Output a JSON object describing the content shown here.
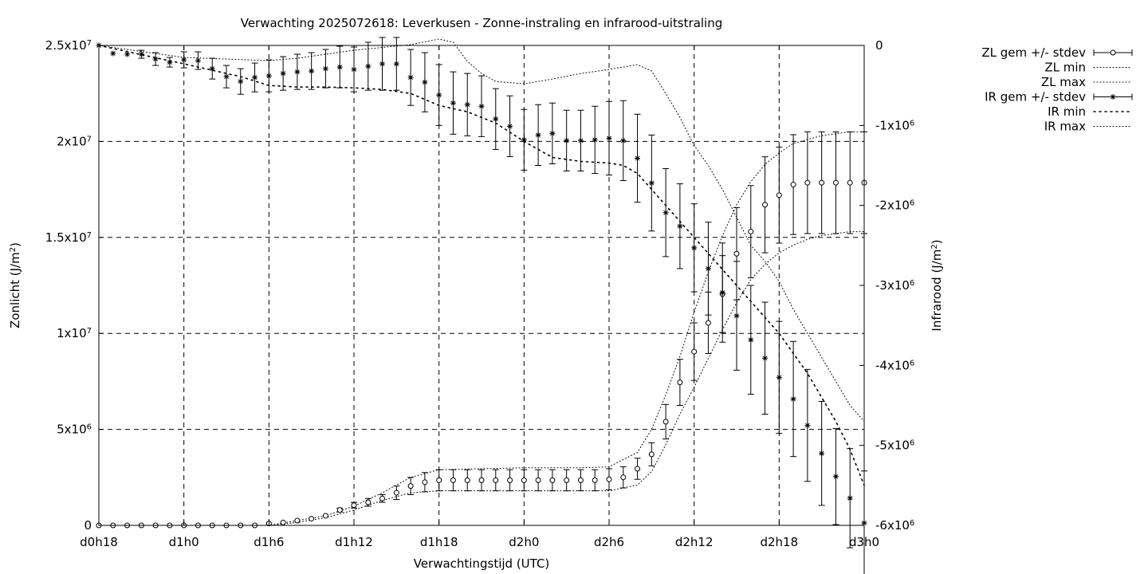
{
  "chart_data": {
    "type": "line",
    "title": "Verwachting 2025072618: Leverkusen - Zonne-instraling en infrarood-uitstraling",
    "xlabel": "Verwachtingstijd (UTC)",
    "ylabel": {
      "prefix": "Zonlicht (J/m",
      "sup": "2",
      "suffix": ")"
    },
    "y2label": {
      "prefix": "Infrarood (J/m",
      "sup": "2",
      "suffix": ")"
    },
    "x_unit_hours": true,
    "xlim": [
      18,
      72
    ],
    "ylim": [
      0,
      25000000
    ],
    "y2lim": [
      -6000000,
      0
    ],
    "grid": true,
    "legend_position": "outside-top-right",
    "x_ticks": [
      {
        "value": 18,
        "label": "d0h18"
      },
      {
        "value": 24,
        "label": "d1h0"
      },
      {
        "value": 30,
        "label": "d1h6"
      },
      {
        "value": 36,
        "label": "d1h12"
      },
      {
        "value": 42,
        "label": "d1h18"
      },
      {
        "value": 48,
        "label": "d2h0"
      },
      {
        "value": 54,
        "label": "d2h6"
      },
      {
        "value": 60,
        "label": "d2h12"
      },
      {
        "value": 66,
        "label": "d2h18"
      },
      {
        "value": 72,
        "label": "d3h0"
      }
    ],
    "y_ticks": [
      {
        "value": 0,
        "base": "0",
        "exp": ""
      },
      {
        "value": 5000000,
        "base": "5x10",
        "exp": "6"
      },
      {
        "value": 10000000,
        "base": "1x10",
        "exp": "7"
      },
      {
        "value": 15000000,
        "base": "1.5x10",
        "exp": "7"
      },
      {
        "value": 20000000,
        "base": "2x10",
        "exp": "7"
      },
      {
        "value": 25000000,
        "base": "2.5x10",
        "exp": "7"
      }
    ],
    "y2_ticks": [
      {
        "value": 0,
        "base": "0",
        "exp": ""
      },
      {
        "value": -1000000,
        "base": "-1x10",
        "exp": "6"
      },
      {
        "value": -2000000,
        "base": "-2x10",
        "exp": "6"
      },
      {
        "value": -3000000,
        "base": "-3x10",
        "exp": "6"
      },
      {
        "value": -4000000,
        "base": "-4x10",
        "exp": "6"
      },
      {
        "value": -5000000,
        "base": "-5x10",
        "exp": "6"
      },
      {
        "value": -6000000,
        "base": "-6x10",
        "exp": "6"
      }
    ],
    "legend": [
      {
        "label": "ZL gem +/- stdev",
        "style": "errorbar-circle"
      },
      {
        "label": "ZL min",
        "style": "fine-dotted"
      },
      {
        "label": "ZL max",
        "style": "fine-dotted"
      },
      {
        "label": "IR gem +/- stdev",
        "style": "errorbar-star"
      },
      {
        "label": "IR min",
        "style": "coarse-dotted"
      },
      {
        "label": "IR max",
        "style": "fine-dotted"
      }
    ],
    "zl_gem": {
      "axis": "y1",
      "x": [
        18,
        19,
        20,
        21,
        22,
        23,
        24,
        25,
        26,
        27,
        28,
        29,
        30,
        31,
        32,
        33,
        34,
        35,
        36,
        37,
        38,
        39,
        40,
        41,
        42,
        43,
        44,
        45,
        46,
        47,
        48,
        49,
        50,
        51,
        52,
        53,
        54,
        55,
        56,
        57,
        58,
        59,
        60,
        61,
        62,
        63,
        64,
        65,
        66,
        67,
        68,
        69,
        70,
        71,
        72
      ],
      "y": [
        0,
        0,
        0,
        0,
        0,
        0,
        0,
        0,
        0,
        0,
        0,
        0,
        100000,
        150000,
        250000,
        350000,
        500000,
        800000,
        1050000,
        1200000,
        1400000,
        1700000,
        2050000,
        2250000,
        2350000,
        2350000,
        2350000,
        2350000,
        2350000,
        2350000,
        2350000,
        2350000,
        2350000,
        2350000,
        2350000,
        2350000,
        2400000,
        2500000,
        2950000,
        3700000,
        5400000,
        7450000,
        9050000,
        10550000,
        12050000,
        14150000,
        15300000,
        16700000,
        17200000,
        17750000,
        17850000,
        17850000,
        17850000,
        17850000,
        17850000
      ],
      "err": [
        0,
        0,
        0,
        0,
        0,
        0,
        0,
        0,
        0,
        0,
        0,
        0,
        0,
        0,
        0,
        0,
        0,
        100000,
        150000,
        200000,
        200000,
        350000,
        450000,
        500000,
        550000,
        550000,
        550000,
        550000,
        550000,
        550000,
        550000,
        550000,
        550000,
        550000,
        550000,
        550000,
        550000,
        550000,
        550000,
        600000,
        900000,
        1200000,
        1500000,
        1600000,
        2000000,
        2400000,
        2400000,
        2500000,
        2500000,
        2600000,
        2650000,
        2650000,
        2650000,
        2650000,
        2650000
      ]
    },
    "zl_min": {
      "axis": "y1",
      "x": [
        18,
        24,
        28,
        30,
        32,
        34,
        36,
        38,
        40,
        42,
        48,
        52,
        54,
        56,
        57,
        58,
        59,
        60,
        61,
        62,
        63,
        64,
        65,
        66,
        67,
        68,
        69,
        70,
        71,
        72
      ],
      "y": [
        0,
        0,
        0,
        0,
        150000,
        400000,
        800000,
        1300000,
        1700000,
        1800000,
        1800000,
        1800000,
        1800000,
        2100000,
        2800000,
        4200000,
        5800000,
        7200000,
        8700000,
        10200000,
        11600000,
        12800000,
        13600000,
        14200000,
        14600000,
        14900000,
        15100000,
        15200000,
        15300000,
        15300000
      ]
    },
    "zl_max": {
      "axis": "y1",
      "x": [
        18,
        24,
        28,
        30,
        32,
        34,
        36,
        38,
        40,
        42,
        48,
        52,
        54,
        56,
        57,
        58,
        59,
        60,
        61,
        62,
        63,
        64,
        65,
        66,
        67,
        68,
        69,
        70,
        71,
        72
      ],
      "y": [
        0,
        0,
        0,
        0,
        250000,
        500000,
        1000000,
        1700000,
        2500000,
        2900000,
        3000000,
        3000000,
        3050000,
        3800000,
        5000000,
        6800000,
        8800000,
        11100000,
        13200000,
        15100000,
        16700000,
        17900000,
        18800000,
        19400000,
        19900000,
        20100000,
        20300000,
        20400000,
        20500000,
        20500000
      ]
    },
    "ir_gem": {
      "axis": "y2",
      "x": [
        18,
        19,
        20,
        21,
        22,
        23,
        24,
        25,
        26,
        27,
        28,
        29,
        30,
        31,
        32,
        33,
        34,
        35,
        36,
        37,
        38,
        39,
        40,
        41,
        42,
        43,
        44,
        45,
        46,
        47,
        48,
        49,
        50,
        51,
        52,
        53,
        54,
        55,
        56,
        57,
        58,
        59,
        60,
        61,
        62,
        63,
        64,
        65,
        66,
        67,
        68,
        69,
        70,
        71,
        72
      ],
      "y": [
        0,
        -100000,
        -110000,
        -110000,
        -170000,
        -210000,
        -180000,
        -190000,
        -290000,
        -390000,
        -450000,
        -400000,
        -380000,
        -350000,
        -330000,
        -320000,
        -290000,
        -270000,
        -300000,
        -260000,
        -230000,
        -230000,
        -400000,
        -460000,
        -620000,
        -720000,
        -740000,
        -760000,
        -920000,
        -1010000,
        -1180000,
        -1120000,
        -1100000,
        -1190000,
        -1190000,
        -1180000,
        -1160000,
        -1190000,
        -1410000,
        -1720000,
        -2090000,
        -2260000,
        -2530000,
        -2790000,
        -3090000,
        -3380000,
        -3680000,
        -3910000,
        -4150000,
        -4420000,
        -4750000,
        -5100000,
        -5390000,
        -5660000,
        -5970000
      ],
      "err": [
        0,
        0,
        0,
        50000,
        80000,
        60000,
        100000,
        110000,
        130000,
        140000,
        160000,
        180000,
        200000,
        210000,
        220000,
        230000,
        240000,
        260000,
        280000,
        300000,
        330000,
        330000,
        350000,
        370000,
        380000,
        390000,
        390000,
        380000,
        380000,
        380000,
        380000,
        380000,
        380000,
        380000,
        380000,
        420000,
        460000,
        500000,
        550000,
        600000,
        550000,
        530000,
        550000,
        580000,
        620000,
        680000,
        680000,
        700000,
        700000,
        720000,
        700000,
        650000,
        600000,
        620000,
        650000
      ]
    },
    "ir_min": {
      "axis": "y2",
      "x": [
        18,
        24,
        28,
        30,
        32,
        34,
        36,
        38,
        40,
        42,
        44,
        46,
        48,
        50,
        52,
        54,
        55,
        56,
        57,
        58,
        59,
        60,
        61,
        62,
        63,
        64,
        65,
        66,
        67,
        68,
        69,
        70,
        71,
        72
      ],
      "y": [
        0,
        -230000,
        -390000,
        -500000,
        -520000,
        -520000,
        -530000,
        -550000,
        -600000,
        -750000,
        -830000,
        -970000,
        -1200000,
        -1400000,
        -1450000,
        -1470000,
        -1500000,
        -1600000,
        -1800000,
        -2000000,
        -2200000,
        -2400000,
        -2600000,
        -2800000,
        -3000000,
        -3200000,
        -3400000,
        -3600000,
        -3850000,
        -4100000,
        -4400000,
        -4700000,
        -5050000,
        -5500000
      ]
    },
    "ir_max": {
      "axis": "y2",
      "x": [
        18,
        24,
        30,
        32,
        36,
        40,
        42,
        43,
        44,
        45,
        46,
        48,
        50,
        52,
        54,
        56,
        57,
        58,
        59,
        60,
        61,
        62,
        63,
        64,
        65,
        66,
        67,
        68,
        69,
        70,
        71,
        72
      ],
      "y": [
        0,
        -150000,
        -190000,
        -160000,
        -60000,
        10000,
        80000,
        40000,
        -200000,
        -350000,
        -450000,
        -480000,
        -420000,
        -350000,
        -300000,
        -240000,
        -320000,
        -600000,
        -900000,
        -1250000,
        -1500000,
        -1800000,
        -2150000,
        -2500000,
        -2700000,
        -2950000,
        -3300000,
        -3600000,
        -3900000,
        -4200000,
        -4500000,
        -4700000
      ]
    }
  }
}
